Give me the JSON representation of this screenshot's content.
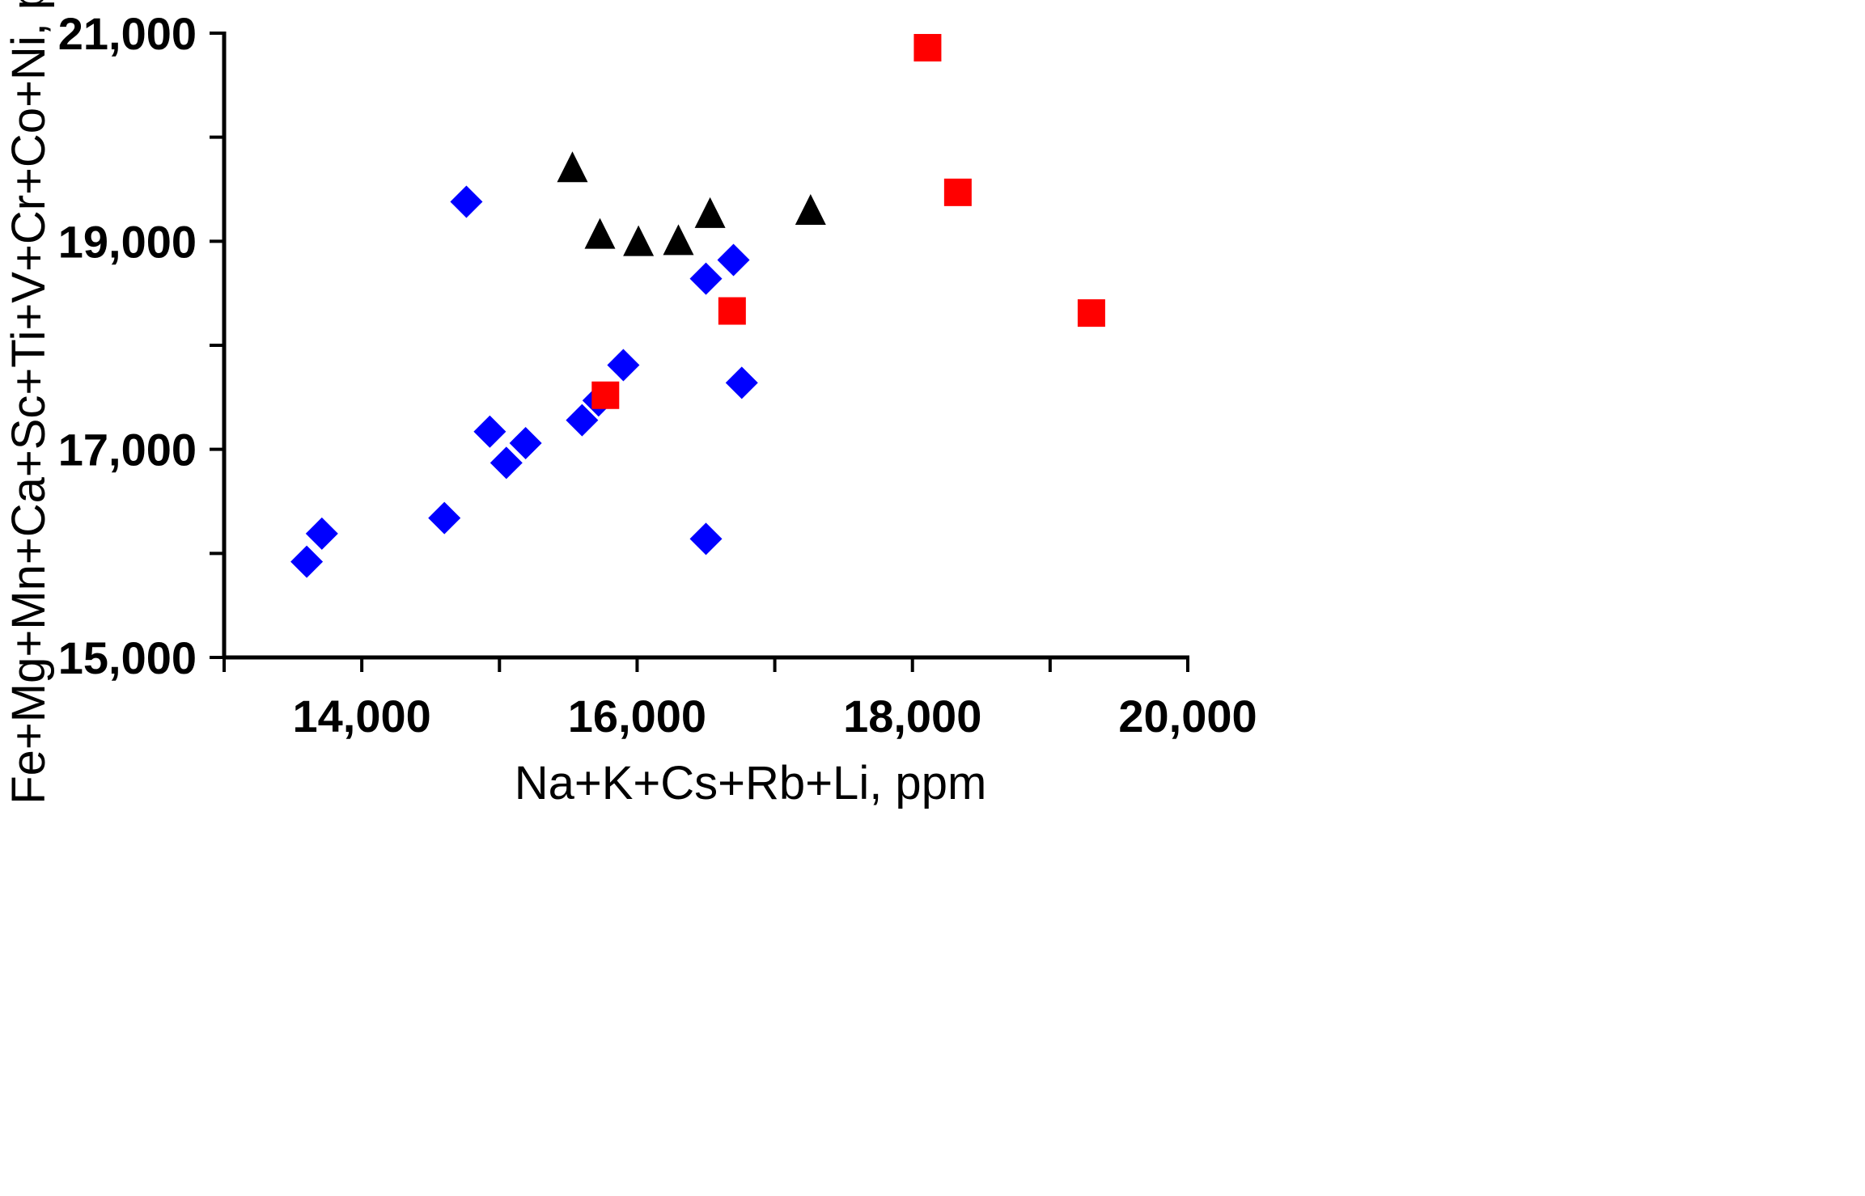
{
  "chart_data": {
    "type": "scatter",
    "xlabel": "Na+K+Cs+Rb+Li, ppm",
    "ylabel": "Fe+Mg+Mn+Ca+Sc+Ti+V+Cr+Co+Ni, ppm",
    "xlim": [
      13000,
      20000
    ],
    "ylim": [
      15000,
      21000
    ],
    "x_ticks": [
      {
        "value": 14000,
        "label": "14,000"
      },
      {
        "value": 16000,
        "label": "16,000"
      },
      {
        "value": 18000,
        "label": "18,000"
      },
      {
        "value": 20000,
        "label": "20,000"
      }
    ],
    "x_minor_ticks": [
      13000,
      14000,
      15000,
      16000,
      17000,
      18000,
      19000,
      20000
    ],
    "y_ticks": [
      {
        "value": 15000,
        "label": "15,000"
      },
      {
        "value": 17000,
        "label": "17,000"
      },
      {
        "value": 19000,
        "label": "19,000"
      },
      {
        "value": 21000,
        "label": "21,000"
      }
    ],
    "y_minor_ticks": [
      15000,
      16000,
      17000,
      18000,
      19000,
      20000,
      21000
    ],
    "grid": false,
    "legend": "none",
    "series": [
      {
        "marker": "diamond",
        "color": "#0000ff",
        "points": [
          {
            "x": 13600,
            "y": 15920
          },
          {
            "x": 13710,
            "y": 16190
          },
          {
            "x": 14600,
            "y": 16340
          },
          {
            "x": 14760,
            "y": 19380
          },
          {
            "x": 14930,
            "y": 17170
          },
          {
            "x": 15050,
            "y": 16870
          },
          {
            "x": 15190,
            "y": 17060
          },
          {
            "x": 15600,
            "y": 17280
          },
          {
            "x": 15720,
            "y": 17470
          },
          {
            "x": 15900,
            "y": 17810
          },
          {
            "x": 16500,
            "y": 16140
          },
          {
            "x": 16500,
            "y": 18640
          },
          {
            "x": 16700,
            "y": 18820
          },
          {
            "x": 16760,
            "y": 17640
          }
        ]
      },
      {
        "marker": "triangle",
        "color": "#000000",
        "points": [
          {
            "x": 15530,
            "y": 19700
          },
          {
            "x": 15730,
            "y": 19060
          },
          {
            "x": 16010,
            "y": 18990
          },
          {
            "x": 16300,
            "y": 19000
          },
          {
            "x": 16530,
            "y": 19260
          },
          {
            "x": 17260,
            "y": 19290
          }
        ]
      },
      {
        "marker": "square",
        "color": "#ff0000",
        "points": [
          {
            "x": 15770,
            "y": 17520
          },
          {
            "x": 16690,
            "y": 18330
          },
          {
            "x": 18110,
            "y": 20860
          },
          {
            "x": 18330,
            "y": 19470
          },
          {
            "x": 19300,
            "y": 18310
          }
        ]
      }
    ]
  }
}
